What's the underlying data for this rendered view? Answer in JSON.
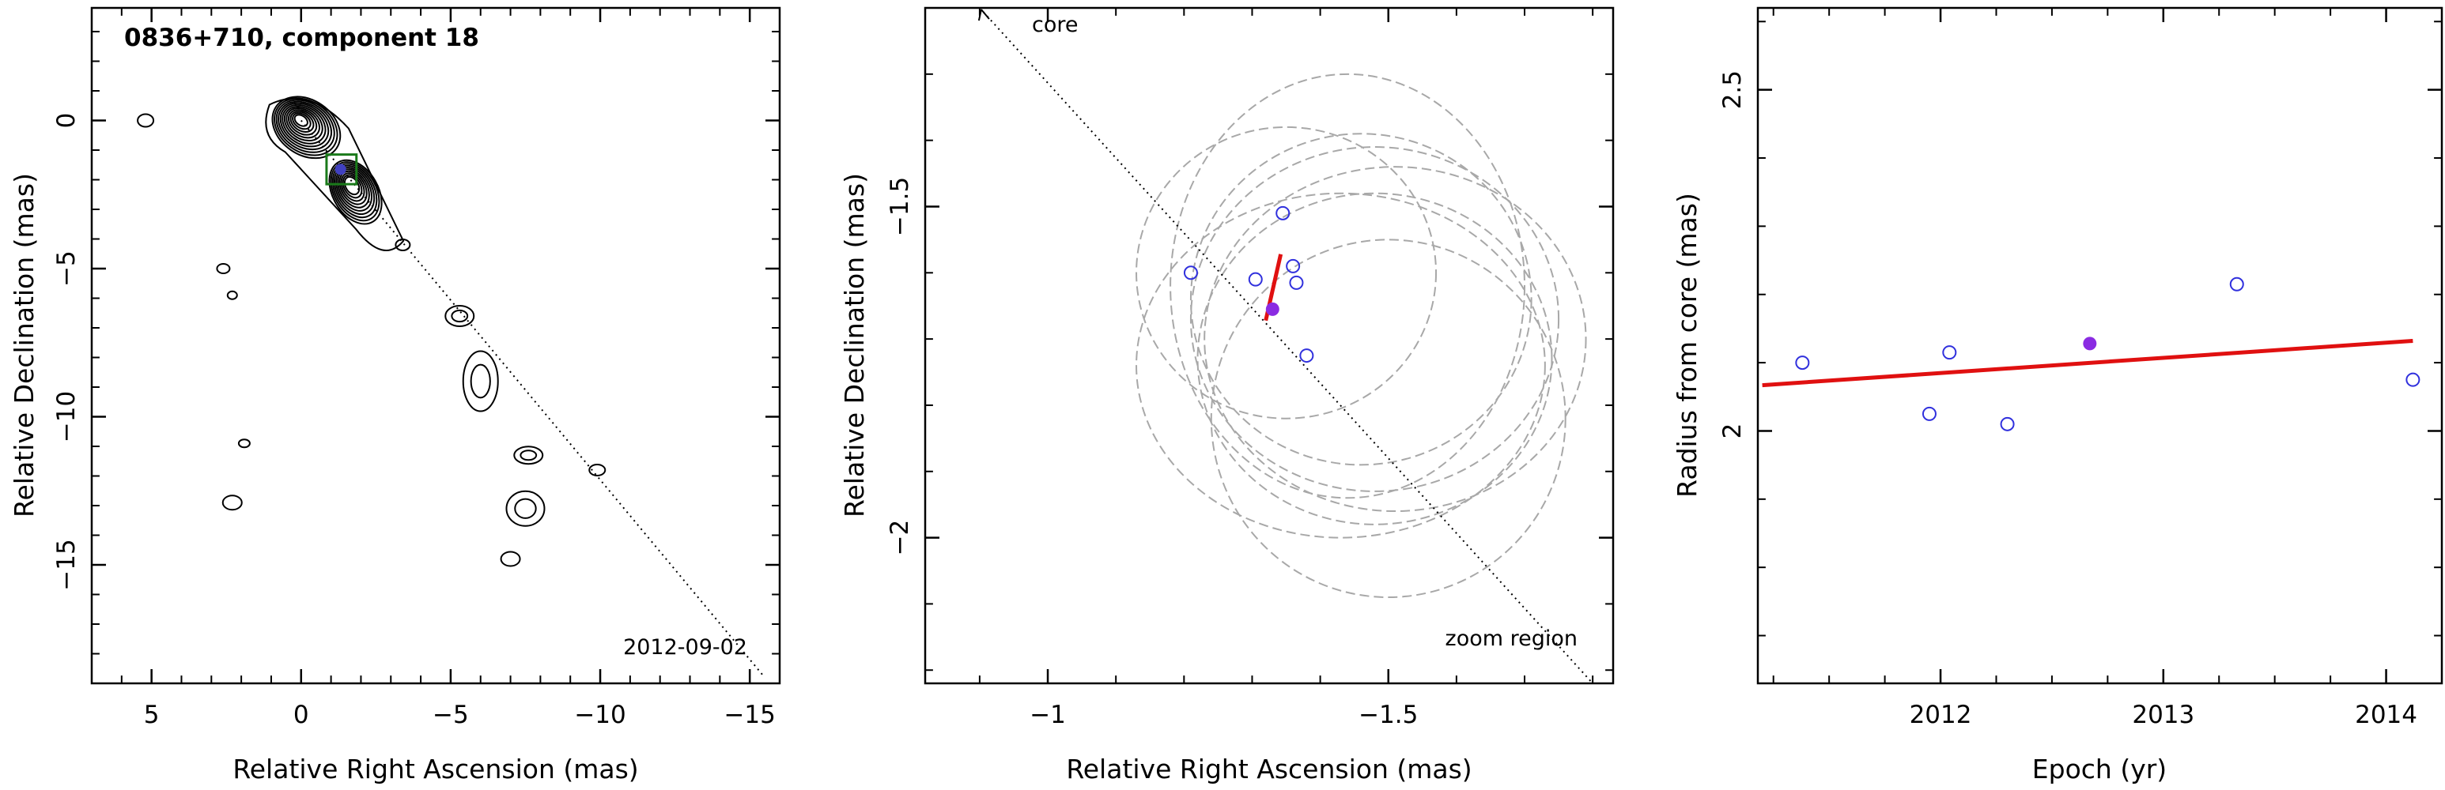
{
  "chart_data": [
    {
      "type": "contour",
      "title": "0836+710, component 18",
      "date_label": "2012-09-02",
      "xlabel": "Relative Right Ascension (mas)",
      "ylabel": "Relative Declination (mas)",
      "xlim": [
        7,
        -16
      ],
      "ylim": [
        -19,
        3.8
      ],
      "xticks": [
        5,
        0,
        -5,
        -10,
        -15
      ],
      "xtick_labels": [
        "5",
        "0",
        "−5",
        "−10",
        "−15"
      ],
      "yticks": [
        0,
        -5,
        -10,
        -15
      ],
      "ytick_labels": [
        "0",
        "−5",
        "−10",
        "−15"
      ],
      "jet_line": [
        [
          0,
          0
        ],
        [
          -15.5,
          -18.8
        ]
      ],
      "core": {
        "x": 0,
        "y": 0
      },
      "component": {
        "x": -1.32,
        "y": -1.65
      },
      "zoom_box": {
        "x": [
          -0.85,
          -1.85
        ],
        "y": [
          -1.15,
          -2.15
        ]
      },
      "colors": {
        "contour": "#000000",
        "component": "#4040c0",
        "zoom_box": "#1a7a1a"
      }
    },
    {
      "type": "scatter",
      "xlabel": "Relative Right Ascension (mas)",
      "ylabel": "Relative Declination (mas)",
      "xlim": [
        -0.82,
        -1.83
      ],
      "ylim": [
        -2.22,
        -1.2
      ],
      "xticks": [
        -1,
        -1.5
      ],
      "xtick_labels": [
        "−1",
        "−1.5"
      ],
      "yticks": [
        -1.5,
        -2
      ],
      "ytick_labels": [
        "−1.5",
        "−2"
      ],
      "annotations": {
        "core": "core",
        "zoom": "zoom region"
      },
      "jet_line": [
        [
          -0.9,
          -1.2
        ],
        [
          -1.8,
          -2.22
        ]
      ],
      "points": [
        {
          "x": -1.21,
          "y": -1.6
        },
        {
          "x": -1.305,
          "y": -1.61
        },
        {
          "x": -1.345,
          "y": -1.51
        },
        {
          "x": -1.36,
          "y": -1.59
        },
        {
          "x": -1.365,
          "y": -1.615
        },
        {
          "x": -1.38,
          "y": -1.725
        }
      ],
      "highlight_point": {
        "x": -1.33,
        "y": -1.655
      },
      "motion_line": [
        [
          -1.342,
          -1.572
        ],
        [
          -1.32,
          -1.672
        ]
      ],
      "beam_ellipses": [
        {
          "cx": -1.35,
          "cy": -1.6,
          "rx": 0.22,
          "ry": 0.22
        },
        {
          "cx": -1.46,
          "cy": -1.64,
          "rx": 0.25,
          "ry": 0.25
        },
        {
          "cx": -1.48,
          "cy": -1.67,
          "rx": 0.27,
          "ry": 0.26
        },
        {
          "cx": -1.51,
          "cy": -1.7,
          "rx": 0.28,
          "ry": 0.26
        },
        {
          "cx": -1.48,
          "cy": -1.73,
          "rx": 0.26,
          "ry": 0.25
        },
        {
          "cx": -1.43,
          "cy": -1.74,
          "rx": 0.3,
          "ry": 0.26
        },
        {
          "cx": -1.5,
          "cy": -1.82,
          "rx": 0.26,
          "ry": 0.27
        },
        {
          "cx": -1.44,
          "cy": -1.62,
          "rx": 0.26,
          "ry": 0.32
        }
      ],
      "colors": {
        "points": "#3030dd",
        "highlight": "#8a2be2",
        "motion": "#e01010",
        "ellipses": "#a8a8a8"
      }
    },
    {
      "type": "scatter",
      "xlabel": "Epoch (yr)",
      "ylabel": "Radius from core (mas)",
      "xlim": [
        2011.18,
        2014.25
      ],
      "ylim": [
        1.63,
        2.62
      ],
      "xticks": [
        2012,
        2013,
        2014
      ],
      "xtick_labels": [
        "2012",
        "2013",
        "2014"
      ],
      "yticks": [
        2,
        2.5
      ],
      "ytick_labels": [
        "2",
        "2.5"
      ],
      "points": [
        {
          "x": 2011.38,
          "y": 2.1
        },
        {
          "x": 2011.95,
          "y": 2.025
        },
        {
          "x": 2012.04,
          "y": 2.115
        },
        {
          "x": 2012.3,
          "y": 2.01
        },
        {
          "x": 2013.33,
          "y": 2.215
        },
        {
          "x": 2014.12,
          "y": 2.075
        }
      ],
      "highlight_point": {
        "x": 2012.67,
        "y": 2.128
      },
      "fit_line": [
        [
          2011.2,
          2.067
        ],
        [
          2014.12,
          2.132
        ]
      ],
      "colors": {
        "points": "#3030dd",
        "highlight": "#8a2be2",
        "fit": "#e01010"
      }
    }
  ]
}
